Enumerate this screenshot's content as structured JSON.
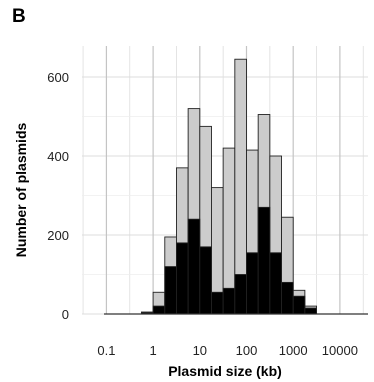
{
  "panel_label": "B",
  "chart_data": {
    "type": "bar",
    "title": "",
    "xlabel": "Plasmid size (kb)",
    "ylabel": "Number of plasmids",
    "x_scale": "log10",
    "xlim": [
      0.03,
      40000
    ],
    "ylim": [
      0,
      700
    ],
    "x_ticks": [
      0.1,
      1,
      10,
      100,
      1000,
      10000
    ],
    "x_tick_labels": [
      "0.1",
      "1",
      "10",
      "100",
      "1000",
      "10000"
    ],
    "y_ticks": [
      0,
      200,
      400,
      600
    ],
    "y_tick_labels": [
      "0",
      "200",
      "400",
      "600"
    ],
    "grid": true,
    "bin_edges_log10": [
      -0.25,
      0,
      0.25,
      0.5,
      0.75,
      1,
      1.25,
      1.5,
      1.75,
      2,
      2.25,
      2.5,
      2.75,
      3,
      3.25,
      3.5
    ],
    "series": [
      {
        "values": [
          5,
          55,
          195,
          370,
          520,
          475,
          320,
          420,
          645,
          415,
          505,
          400,
          245,
          60,
          20
        ]
      },
      {
        "values": [
          3,
          20,
          120,
          180,
          240,
          170,
          55,
          65,
          100,
          155,
          270,
          155,
          80,
          45,
          15
        ]
      }
    ],
    "colors": {
      "total": "#cccccc",
      "subset": "#000000",
      "outline": "#222222",
      "grid": "#dddddd"
    }
  }
}
